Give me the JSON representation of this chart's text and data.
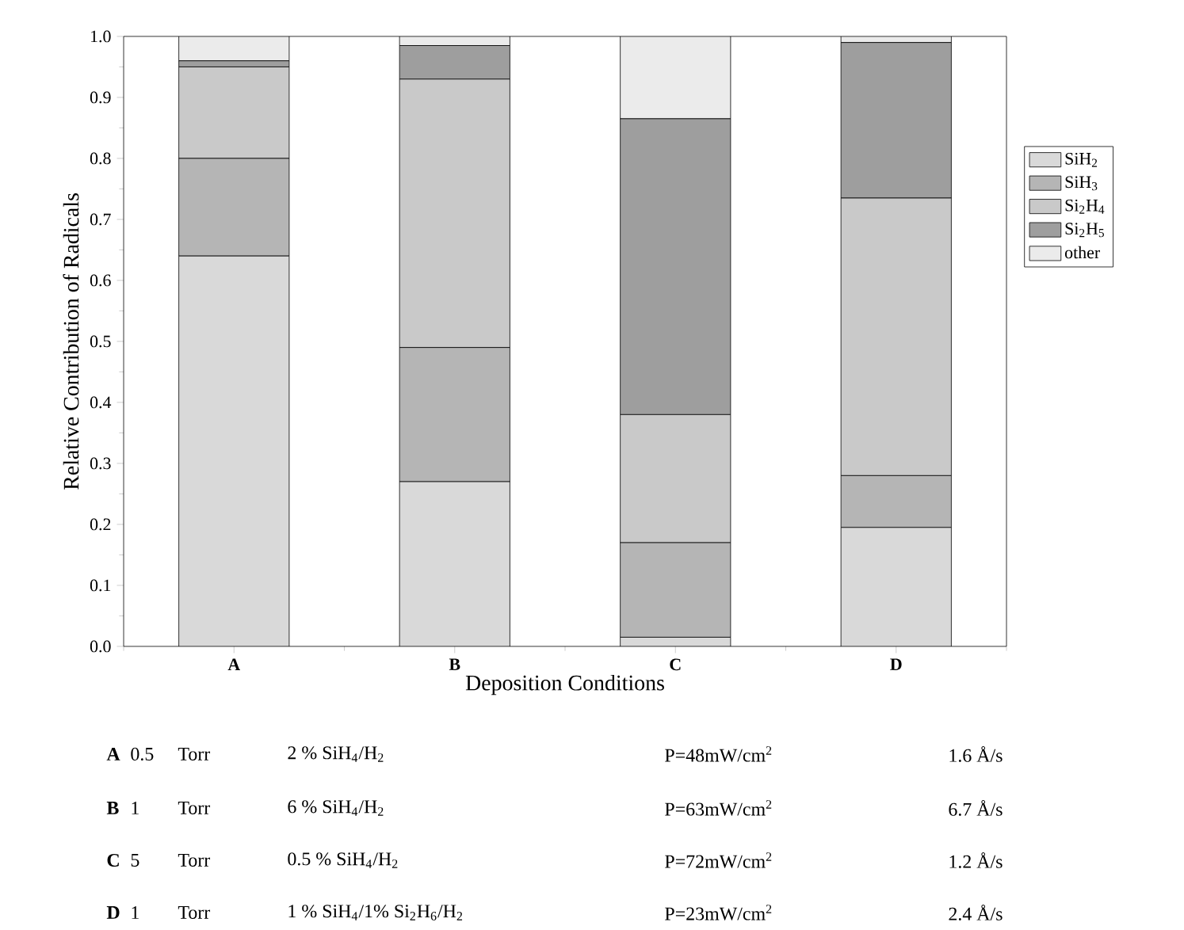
{
  "chart_data": {
    "type": "bar",
    "stacked": true,
    "categories": [
      "A",
      "B",
      "C",
      "D"
    ],
    "series": [
      {
        "name": "SiH$_{2}$",
        "color": "#d9d9d9",
        "values": [
          0.64,
          0.27,
          0.015,
          0.195
        ]
      },
      {
        "name": "SiH$_{3}$",
        "color": "#b5b5b5",
        "values": [
          0.16,
          0.22,
          0.155,
          0.085
        ]
      },
      {
        "name": "Si$_{2}$H$_{4}$",
        "color": "#c9c9c9",
        "values": [
          0.15,
          0.44,
          0.21,
          0.455
        ]
      },
      {
        "name": "Si$_{2}$H$_{5}$",
        "color": "#9e9e9e",
        "values": [
          0.01,
          0.055,
          0.485,
          0.255
        ]
      },
      {
        "name": "other",
        "color": "#ebebeb",
        "values": [
          0.04,
          0.015,
          0.135,
          0.01
        ]
      }
    ],
    "ylim": [
      0,
      1
    ],
    "yticks": [
      {
        "value": 0,
        "label": "0.0"
      },
      {
        "value": 0.1,
        "label": "0.1"
      },
      {
        "value": 0.2,
        "label": "0.2"
      },
      {
        "value": 0.3,
        "label": "0.3"
      },
      {
        "value": 0.4,
        "label": "0.4"
      },
      {
        "value": 0.5,
        "label": "0.5"
      },
      {
        "value": 0.6,
        "label": "0.6"
      },
      {
        "value": 0.7,
        "label": "0.7"
      },
      {
        "value": 0.8,
        "label": "0.8"
      },
      {
        "value": 0.9,
        "label": "0.9"
      },
      {
        "value": 1,
        "label": "1.0"
      }
    ],
    "xlabel": "Deposition Conditions",
    "ylabel": "Relative Contribution of Radicals",
    "legend": "right",
    "grid": false,
    "annotations": [
      "A",
      "0.5",
      "Torr",
      "2 % SiH$_{4}$/H$_{2}$",
      "P=48mW/cm$^{2}$",
      "1.6 Å/s",
      "B",
      "1",
      "Torr",
      "6 % SiH$_{4}$/H$_{2}$",
      "P=63mW/cm$^{2}$",
      "6.7 Å/s",
      "C",
      "5",
      "Torr",
      "0.5 % SiH$_{4}$/H$_{2}$",
      "P=72mW/cm$^{2}$",
      "1.2 Å/s",
      "D",
      "1",
      "Torr",
      "1 % SiH$_{4}$/1% Si$_{2}$H$_{6}$/H$_{2}$",
      "P=23mW/cm$^{2}$",
      "2.4 Å/s"
    ]
  }
}
